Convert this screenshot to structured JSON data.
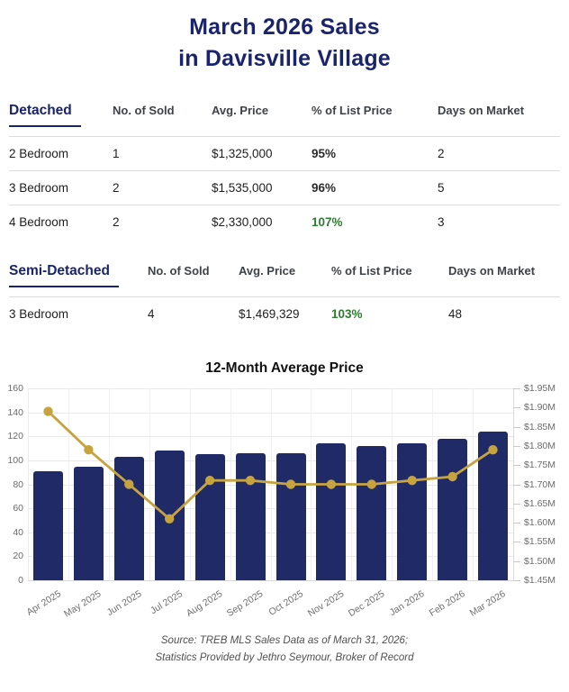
{
  "page_title": {
    "line1": "March 2026 Sales",
    "line2": "in Davisville Village"
  },
  "tables": [
    {
      "id": "detached",
      "title": "Detached",
      "columns": [
        "No. of Sold",
        "Avg. Price",
        "% of List Price",
        "Days on Market"
      ],
      "rows": [
        {
          "label": "2 Bedroom",
          "no_of_sold": "1",
          "avg_price": "$1,325,000",
          "pct_of_list": "95%",
          "pct_style": "dark",
          "days_on_market": "2"
        },
        {
          "label": "3 Bedroom",
          "no_of_sold": "2",
          "avg_price": "$1,535,000",
          "pct_of_list": "96%",
          "pct_style": "dark",
          "days_on_market": "5"
        },
        {
          "label": "4 Bedroom",
          "no_of_sold": "2",
          "avg_price": "$2,330,000",
          "pct_of_list": "107%",
          "pct_style": "green",
          "days_on_market": "3"
        }
      ]
    },
    {
      "id": "semi-detached",
      "title": "Semi-Detached",
      "columns": [
        "No. of Sold",
        "Avg. Price",
        "% of List Price",
        "Days on Market"
      ],
      "rows": [
        {
          "label": "3 Bedroom",
          "no_of_sold": "4",
          "avg_price": "$1,469,329",
          "pct_of_list": "103%",
          "pct_style": "green",
          "days_on_market": "48"
        }
      ]
    }
  ],
  "chart_data": {
    "type": "bar+line",
    "title": "12-Month Average Price",
    "categories": [
      "Apr 2025",
      "May 2025",
      "Jun 2025",
      "Jul 2025",
      "Aug 2025",
      "Sep 2025",
      "Oct 2025",
      "Nov 2025",
      "Dec 2025",
      "Jan 2026",
      "Feb 2026",
      "Mar 2026"
    ],
    "series": [
      {
        "name": "monthly-bars",
        "type": "bar",
        "axis": "left",
        "values": [
          91,
          95,
          103,
          108,
          105,
          106,
          106,
          114,
          112,
          114,
          118,
          124
        ]
      },
      {
        "name": "average-price-line",
        "type": "line",
        "axis": "right",
        "values_millions": [
          1.89,
          1.79,
          1.7,
          1.61,
          1.71,
          1.71,
          1.7,
          1.7,
          1.7,
          1.71,
          1.72,
          1.79
        ]
      }
    ],
    "left_axis": {
      "min": 0,
      "max": 160,
      "step": 20,
      "ticks": [
        "0",
        "20",
        "40",
        "60",
        "80",
        "100",
        "120",
        "140",
        "160"
      ]
    },
    "right_axis": {
      "min": 1.45,
      "max": 1.95,
      "step": 0.05,
      "ticks": [
        "$1.45M",
        "$1.50M",
        "$1.55M",
        "$1.60M",
        "$1.65M",
        "$1.70M",
        "$1.75M",
        "$1.80M",
        "$1.85M",
        "$1.90M",
        "$1.95M"
      ]
    },
    "grid": true,
    "legend": "none",
    "bar_color": "#1F2A66",
    "line_color": "#C7A33F"
  },
  "footer": {
    "line1": "Source: TREB MLS Sales Data as of March 31, 2026;",
    "line2": "Statistics Provided by Jethro Seymour, Broker of Record"
  },
  "colors": {
    "navy_text": "#1A246E",
    "bar_navy": "#1F2A66",
    "gold_line": "#C7A33F",
    "green_accent": "#2E7D32",
    "header_text": "#3E4247",
    "body_text": "#1E1E1E",
    "axis_text": "#6B6B6B",
    "footer_text": "#4F4F4F"
  }
}
